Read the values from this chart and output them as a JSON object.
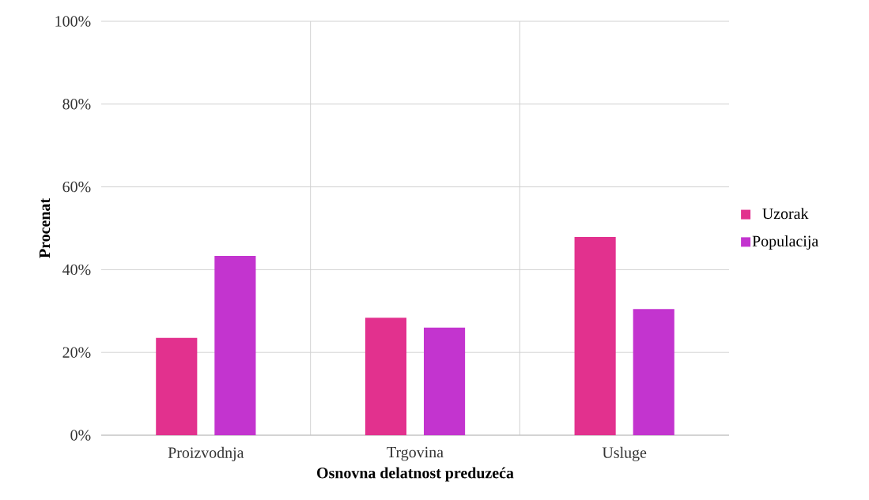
{
  "chart_data": {
    "type": "bar",
    "xlabel": "Osnovna delatnost preduzeća",
    "ylabel": "Procenat",
    "categories": [
      "Proizvodnja",
      "Trgovina",
      "Usluge"
    ],
    "series": [
      {
        "name": "Uzorak",
        "color": "#e2318e",
        "values": [
          23.5,
          28.4,
          47.9
        ]
      },
      {
        "name": "Populacija",
        "color": "#c334cf",
        "values": [
          43.3,
          26.0,
          30.5
        ]
      }
    ],
    "ylim": [
      0,
      100
    ],
    "yticks": [
      {
        "value": 0,
        "label": "0%"
      },
      {
        "value": 20,
        "label": "20%"
      },
      {
        "value": 40,
        "label": "40%"
      },
      {
        "value": 60,
        "label": "60%"
      },
      {
        "value": 80,
        "label": "80%"
      },
      {
        "value": 100,
        "label": "100%"
      }
    ],
    "grid": true,
    "legend": "right"
  }
}
